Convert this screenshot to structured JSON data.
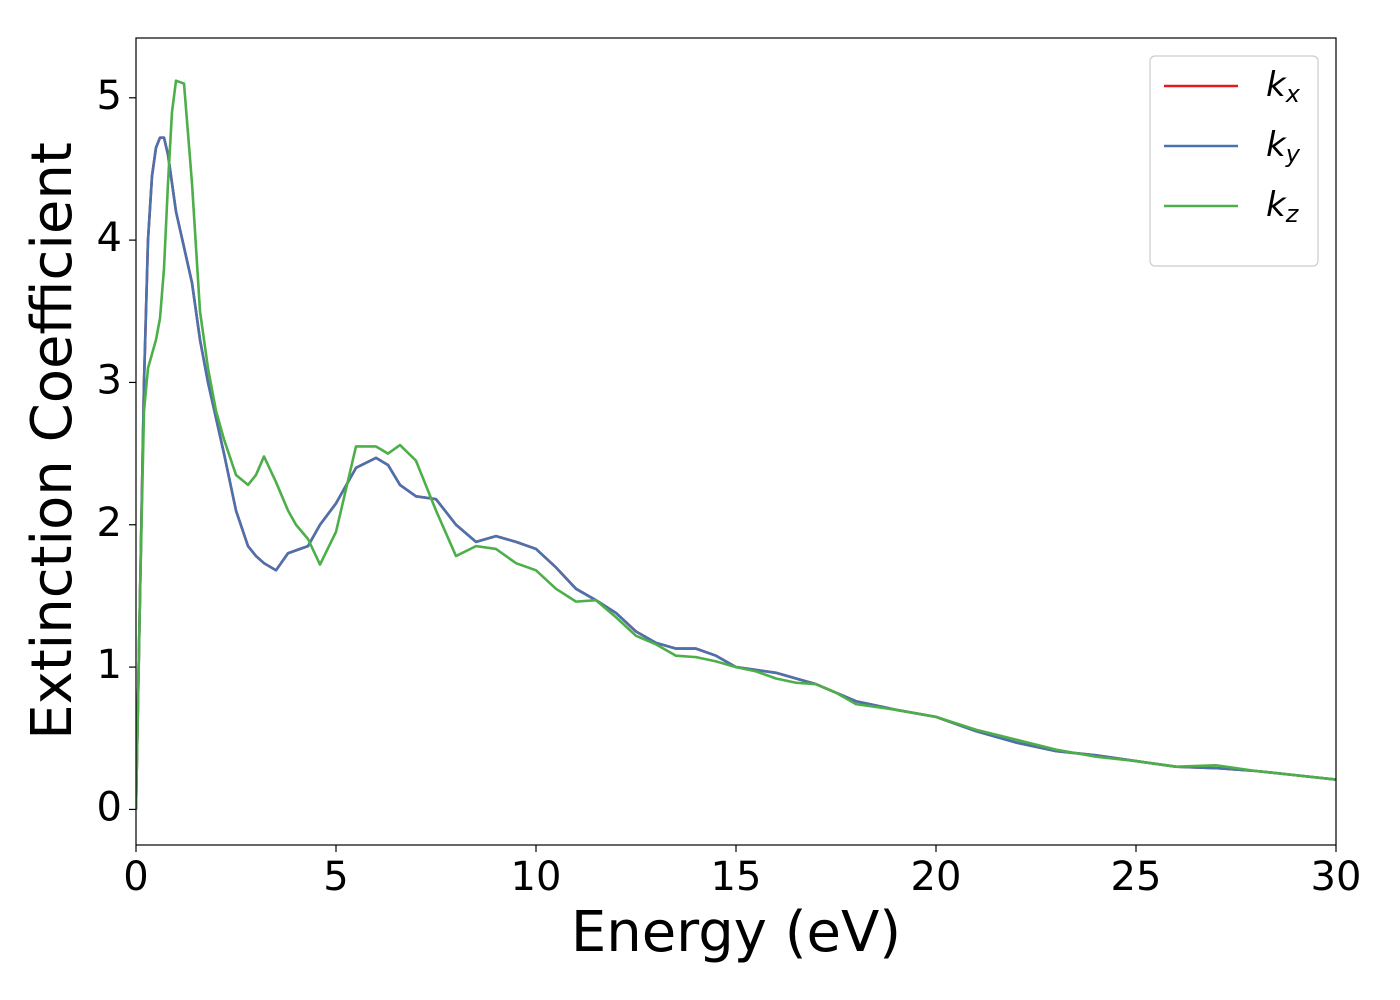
{
  "chart_data": {
    "type": "line",
    "x_label": "Energy (eV)",
    "y_label": "Extinction Coefficient",
    "x": [
      0,
      0.1,
      0.2,
      0.3,
      0.4,
      0.5,
      0.6,
      0.7,
      0.8,
      0.9,
      1.0,
      1.2,
      1.4,
      1.6,
      1.8,
      2.0,
      2.2,
      2.5,
      2.8,
      3.0,
      3.2,
      3.5,
      3.8,
      4.0,
      4.3,
      4.6,
      5.0,
      5.5,
      6.0,
      6.3,
      6.6,
      7.0,
      7.5,
      8.0,
      8.5,
      9.0,
      9.5,
      10.0,
      10.5,
      11.0,
      11.5,
      12,
      12.5,
      13,
      13.5,
      14,
      14.5,
      15,
      15.5,
      16,
      16.5,
      17,
      17.5,
      18,
      19,
      20,
      21,
      22,
      23,
      24,
      25,
      26,
      27,
      28,
      29,
      30
    ],
    "series": [
      {
        "name": "k",
        "subscript": "x",
        "color": "#e41a1c",
        "values": [
          0,
          1.5,
          3.0,
          4.0,
          4.45,
          4.65,
          4.72,
          4.72,
          4.6,
          4.4,
          4.2,
          3.95,
          3.7,
          3.3,
          3.0,
          2.75,
          2.5,
          2.1,
          1.85,
          1.78,
          1.73,
          1.68,
          1.8,
          1.82,
          1.85,
          2.0,
          2.15,
          2.4,
          2.47,
          2.42,
          2.28,
          2.2,
          2.18,
          2.0,
          1.88,
          1.92,
          1.88,
          1.83,
          1.7,
          1.55,
          1.47,
          1.38,
          1.25,
          1.17,
          1.13,
          1.13,
          1.08,
          1.0,
          0.98,
          0.96,
          0.92,
          0.88,
          0.82,
          0.76,
          0.7,
          0.65,
          0.55,
          0.47,
          0.41,
          0.38,
          0.34,
          0.3,
          0.29,
          0.27,
          0.24,
          0.21
        ]
      },
      {
        "name": "k",
        "subscript": "y",
        "color": "#4a72ad",
        "values": [
          0,
          1.5,
          3.0,
          4.0,
          4.45,
          4.65,
          4.72,
          4.72,
          4.6,
          4.4,
          4.2,
          3.95,
          3.7,
          3.3,
          3.0,
          2.75,
          2.5,
          2.1,
          1.85,
          1.78,
          1.73,
          1.68,
          1.8,
          1.82,
          1.85,
          2.0,
          2.15,
          2.4,
          2.47,
          2.42,
          2.28,
          2.2,
          2.18,
          2.0,
          1.88,
          1.92,
          1.88,
          1.83,
          1.7,
          1.55,
          1.47,
          1.38,
          1.25,
          1.17,
          1.13,
          1.13,
          1.08,
          1.0,
          0.98,
          0.96,
          0.92,
          0.88,
          0.82,
          0.76,
          0.7,
          0.65,
          0.55,
          0.47,
          0.41,
          0.38,
          0.34,
          0.3,
          0.29,
          0.27,
          0.24,
          0.21
        ]
      },
      {
        "name": "k",
        "subscript": "z",
        "color": "#4daf4a",
        "values": [
          0,
          1.5,
          2.8,
          3.1,
          3.2,
          3.3,
          3.45,
          3.8,
          4.4,
          4.9,
          5.12,
          5.1,
          4.4,
          3.5,
          3.1,
          2.8,
          2.6,
          2.35,
          2.28,
          2.35,
          2.48,
          2.3,
          2.1,
          2.0,
          1.9,
          1.72,
          1.95,
          2.55,
          2.55,
          2.5,
          2.56,
          2.45,
          2.1,
          1.78,
          1.85,
          1.83,
          1.73,
          1.68,
          1.55,
          1.46,
          1.47,
          1.35,
          1.22,
          1.16,
          1.08,
          1.07,
          1.04,
          1.0,
          0.97,
          0.92,
          0.89,
          0.88,
          0.82,
          0.74,
          0.7,
          0.65,
          0.56,
          0.49,
          0.42,
          0.37,
          0.34,
          0.3,
          0.31,
          0.27,
          0.24,
          0.21
        ]
      }
    ],
    "xlim": [
      0,
      30
    ],
    "ylim": [
      -0.25,
      5.42
    ],
    "xticks": [
      0,
      5,
      10,
      15,
      20,
      25,
      30
    ],
    "yticks": [
      0,
      1,
      2,
      3,
      4,
      5
    ],
    "grid": false,
    "legend": "upper right"
  }
}
